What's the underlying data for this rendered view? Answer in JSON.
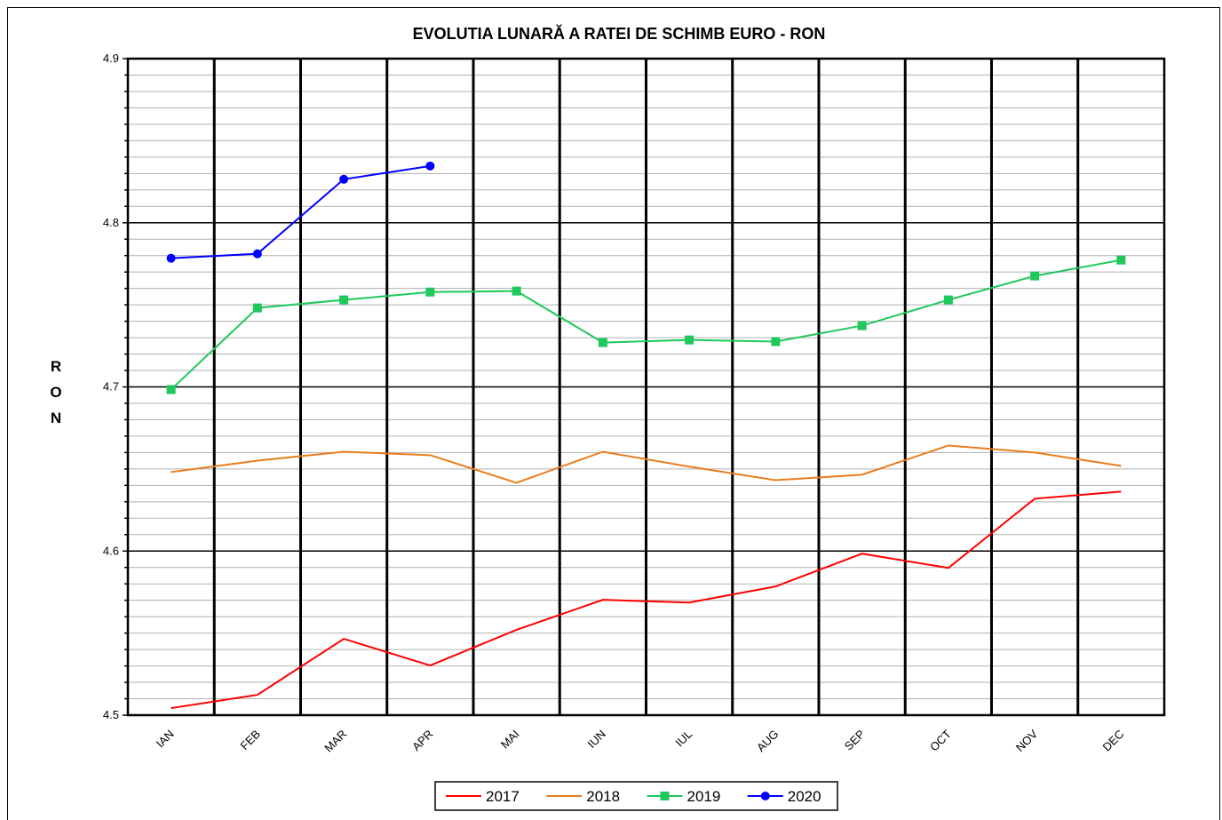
{
  "chart_data": {
    "type": "line",
    "title": "EVOLUTIA LUNARĂ A RATEI DE SCHIMB EURO - RON",
    "y_label": "RON",
    "categories": [
      "IAN",
      "FEB",
      "MAR",
      "APR",
      "MAI",
      "IUN",
      "IUL",
      "AUG",
      "SEP",
      "OCT",
      "NOV",
      "DEC"
    ],
    "ylim": [
      4.5,
      4.9
    ],
    "yticks": [
      4.5,
      4.6,
      4.7,
      4.8,
      4.9
    ],
    "minor_yticks": [
      4.51,
      4.52,
      4.53,
      4.54,
      4.55,
      4.56,
      4.57,
      4.58,
      4.59,
      4.61,
      4.62,
      4.63,
      4.64,
      4.65,
      4.66,
      4.67,
      4.68,
      4.69,
      4.71,
      4.72,
      4.73,
      4.74,
      4.75,
      4.76,
      4.77,
      4.78,
      4.79,
      4.81,
      4.82,
      4.83,
      4.84,
      4.85,
      4.86,
      4.87,
      4.88,
      4.89
    ],
    "grid": true,
    "legend": "bottom",
    "series": [
      {
        "name": "2017",
        "color": "#ff0000",
        "marker": "none",
        "values": [
          4.5043,
          4.5124,
          4.5465,
          4.5303,
          4.552,
          4.5703,
          4.5686,
          4.5784,
          4.5984,
          4.5897,
          4.6319,
          4.6362
        ]
      },
      {
        "name": "2018",
        "color": "#e87d1e",
        "marker": "none",
        "values": [
          4.6481,
          4.6551,
          4.6605,
          4.6584,
          4.6416,
          4.6605,
          4.6514,
          4.6432,
          4.6465,
          4.6643,
          4.66,
          4.6519
        ]
      },
      {
        "name": "2019",
        "color": "#1ec85a",
        "marker": "square",
        "values": [
          4.6984,
          4.7481,
          4.753,
          4.7578,
          4.7584,
          4.727,
          4.7286,
          4.7276,
          4.7373,
          4.753,
          4.7676,
          4.7773
        ]
      },
      {
        "name": "2020",
        "color": "#0000ff",
        "marker": "circle",
        "values": [
          4.7784,
          4.7811,
          4.8265,
          4.8346,
          null,
          null,
          null,
          null,
          null,
          null,
          null,
          null
        ]
      }
    ]
  }
}
